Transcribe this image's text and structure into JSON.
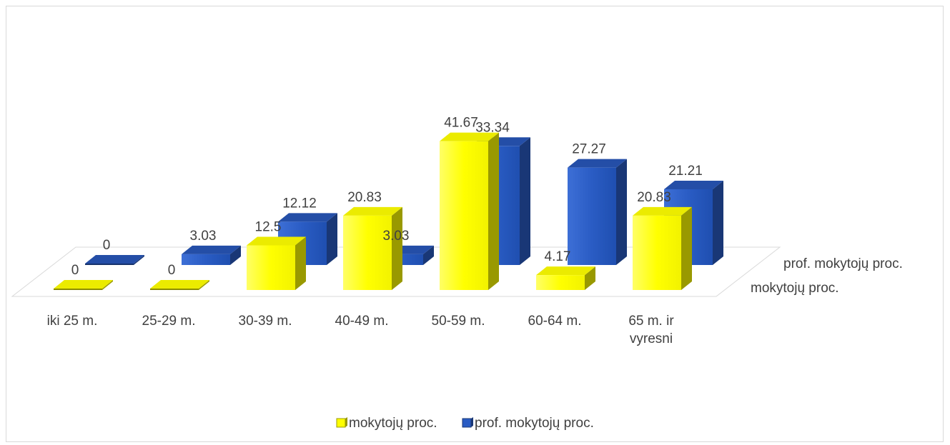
{
  "chart_data": {
    "type": "bar",
    "subtype": "3d-column",
    "title": "",
    "categories": [
      "iki 25 m.",
      "25-29 m.",
      "30-39 m.",
      "40-49 m.",
      "50-59 m.",
      "60-64 m.",
      "65 m. ir vyresni"
    ],
    "series": [
      {
        "name": "mokytojų proc.",
        "values": [
          0,
          0,
          12.5,
          20.83,
          41.67,
          4.17,
          20.83
        ],
        "value_labels": [
          "0",
          "0",
          "12.5",
          "20.83",
          "41.67",
          "4.17",
          "20.83"
        ]
      },
      {
        "name": "prof. mokytojų proc.",
        "values": [
          0,
          3.03,
          12.12,
          3.03,
          33.34,
          27.27,
          21.21
        ],
        "value_labels": [
          "0",
          "3.03",
          "12.12",
          "3.03",
          "33.34",
          "27.27",
          "21.21"
        ]
      }
    ],
    "data_labels": true,
    "legend_position": "bottom",
    "grid": false,
    "colors": {
      "mokytojų proc.": "#ffff00",
      "prof. mokytojų proc.": "#2a5cc4"
    }
  }
}
